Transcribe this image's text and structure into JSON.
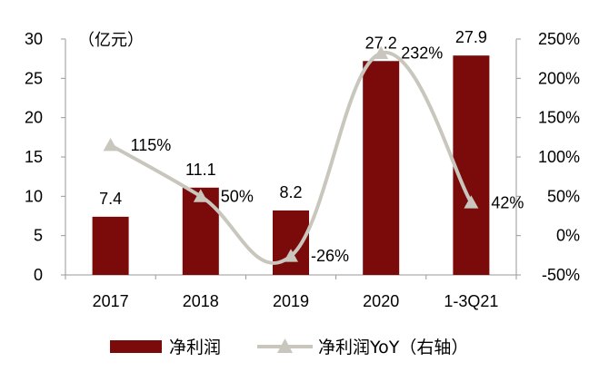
{
  "chart_data": {
    "type": "bar",
    "unit_label": "（亿元）",
    "categories": [
      "2017",
      "2018",
      "2019",
      "2020",
      "1-3Q21"
    ],
    "series": [
      {
        "name": "净利润",
        "type": "bar",
        "axis": "left",
        "values": [
          7.4,
          11.1,
          8.2,
          27.2,
          27.9
        ],
        "labels": [
          "7.4",
          "11.1",
          "8.2",
          "27.2",
          "27.9"
        ],
        "color": "#7b0a0a"
      },
      {
        "name": "净利润YoY（右轴）",
        "type": "line",
        "axis": "right",
        "values": [
          115,
          50,
          -26,
          232,
          42
        ],
        "labels": [
          "115%",
          "50%",
          "-26%",
          "232%",
          "42%"
        ],
        "color": "#c9c7bd",
        "marker": "triangle"
      }
    ],
    "y_left": {
      "min": 0,
      "max": 30,
      "step": 5,
      "ticks": [
        "0",
        "5",
        "10",
        "15",
        "20",
        "25",
        "30"
      ]
    },
    "y_right": {
      "min": -50,
      "max": 250,
      "step": 50,
      "ticks": [
        "-50%",
        "0%",
        "50%",
        "100%",
        "150%",
        "200%",
        "250%"
      ]
    },
    "legend_position": "bottom",
    "grid": false
  }
}
